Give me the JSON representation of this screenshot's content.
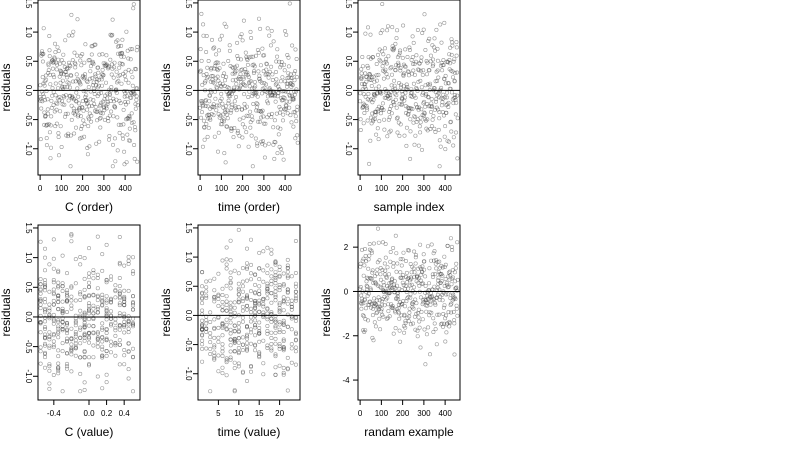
{
  "chart_data": [
    {
      "type": "scatter",
      "xlabel": "C (order)",
      "ylabel": "residuals",
      "xlim": [
        -10,
        470
      ],
      "ylim": [
        -1.45,
        1.55
      ],
      "xticks": [
        0,
        100,
        200,
        300,
        400
      ],
      "xtick_labels": [
        "0",
        "100",
        "200",
        "300",
        "400"
      ],
      "yticks": [
        -1.0,
        -0.5,
        0.0,
        0.5,
        1.0,
        1.5
      ],
      "ytick_labels": [
        "-1.0",
        "-0.5",
        "0.0",
        "0.5",
        "1.0",
        "1.5"
      ],
      "y_tick_rotation": "vertical",
      "hline": 0,
      "n_points": 460,
      "x_pattern": "order",
      "y_spread": 0.5
    },
    {
      "type": "scatter",
      "xlabel": "time (order)",
      "ylabel": "residuals",
      "xlim": [
        -10,
        470
      ],
      "ylim": [
        -1.45,
        1.55
      ],
      "xticks": [
        0,
        100,
        200,
        300,
        400
      ],
      "xtick_labels": [
        "0",
        "100",
        "200",
        "300",
        "400"
      ],
      "yticks": [
        -1.0,
        -0.5,
        0.0,
        0.5,
        1.0,
        1.5
      ],
      "ytick_labels": [
        "-1.0",
        "-0.5",
        "0.0",
        "0.5",
        "1.0",
        "1.5"
      ],
      "y_tick_rotation": "vertical",
      "hline": 0,
      "n_points": 460,
      "x_pattern": "order",
      "y_spread": 0.5
    },
    {
      "type": "scatter",
      "xlabel": "sample index",
      "ylabel": "residuals",
      "xlim": [
        -10,
        470
      ],
      "ylim": [
        -1.45,
        1.55
      ],
      "xticks": [
        0,
        100,
        200,
        300,
        400
      ],
      "xtick_labels": [
        "0",
        "100",
        "200",
        "300",
        "400"
      ],
      "yticks": [
        -1.0,
        -0.5,
        0.0,
        0.5,
        1.0,
        1.5
      ],
      "ytick_labels": [
        "-1.0",
        "-0.5",
        "0.0",
        "0.5",
        "1.0",
        "1.5"
      ],
      "y_tick_rotation": "vertical",
      "hline": 0,
      "n_points": 460,
      "x_pattern": "order",
      "y_spread": 0.5
    },
    {
      "type": "scatter",
      "xlabel": "C (value)",
      "ylabel": "residuals",
      "xlim": [
        -0.58,
        0.58
      ],
      "ylim": [
        -1.4,
        1.55
      ],
      "xticks": [
        -0.4,
        0.0,
        0.2,
        0.4
      ],
      "xtick_labels": [
        "-0.4",
        "0.0",
        "0.2",
        "0.4"
      ],
      "yticks": [
        -1.0,
        -0.5,
        0.0,
        0.5,
        1.0,
        1.5
      ],
      "ytick_labels": [
        "-1.0",
        "-0.5",
        "0.0",
        "0.5",
        "1.0",
        "1.5"
      ],
      "y_tick_rotation": "vertical",
      "hline": 0,
      "n_points": 460,
      "x_pattern": "discrete",
      "x_levels": [
        -0.55,
        -0.5,
        -0.45,
        -0.4,
        -0.35,
        -0.3,
        -0.25,
        -0.2,
        -0.15,
        -0.1,
        -0.05,
        0.0,
        0.05,
        0.1,
        0.15,
        0.2,
        0.25,
        0.3,
        0.35,
        0.4,
        0.45,
        0.5
      ],
      "y_spread": 0.5
    },
    {
      "type": "scatter",
      "xlabel": "time (value)",
      "ylabel": "residuals",
      "xlim": [
        0,
        25
      ],
      "ylim": [
        -1.45,
        1.55
      ],
      "xticks": [
        5,
        10,
        15,
        20
      ],
      "xtick_labels": [
        "5",
        "10",
        "15",
        "20"
      ],
      "yticks": [
        -1.0,
        -0.5,
        0.0,
        0.5,
        1.0,
        1.5
      ],
      "ytick_labels": [
        "-1.0",
        "-0.5",
        "0.0",
        "0.5",
        "1.0",
        "1.5"
      ],
      "y_tick_rotation": "vertical",
      "hline": 0,
      "n_points": 460,
      "x_pattern": "discrete",
      "x_levels": [
        1,
        2,
        3,
        4,
        5,
        6,
        7,
        8,
        9,
        10,
        11,
        12,
        13,
        14,
        15,
        16,
        17,
        18,
        19,
        20,
        21,
        22,
        23,
        24
      ],
      "y_spread": 0.5
    },
    {
      "type": "scatter",
      "xlabel": "randam example",
      "ylabel": "residuals",
      "xlim": [
        -10,
        470
      ],
      "ylim": [
        -4.9,
        3.0
      ],
      "xticks": [
        0,
        100,
        200,
        300,
        400
      ],
      "xtick_labels": [
        "0",
        "100",
        "200",
        "300",
        "400"
      ],
      "yticks": [
        -4,
        -2,
        0,
        2
      ],
      "ytick_labels": [
        "-4",
        "-2",
        "0",
        "2"
      ],
      "y_tick_rotation": "horizontal",
      "hline": 0,
      "n_points": 460,
      "x_pattern": "order",
      "y_spread": 1.0
    }
  ]
}
